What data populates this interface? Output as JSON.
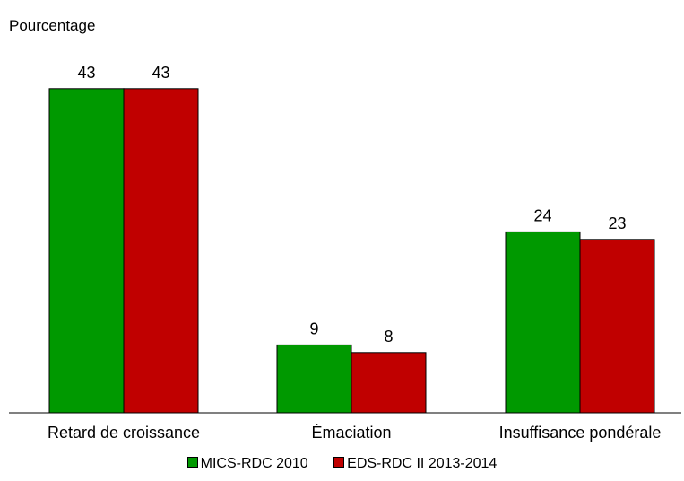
{
  "chart_data": {
    "type": "bar",
    "title": "",
    "ylabel": "Pourcentage",
    "xlabel": "",
    "categories": [
      "Retard de croissance",
      "Émaciation",
      "Insuffisance pondérale"
    ],
    "series": [
      {
        "name": "MICS-RDC 2010",
        "values": [
          43,
          9,
          24
        ],
        "color": "#009900"
      },
      {
        "name": "EDS-RDC II 2013-2014",
        "values": [
          43,
          8,
          23
        ],
        "color": "#C00000"
      }
    ],
    "ylim": [
      0,
      50
    ],
    "grid": false,
    "legend_position": "bottom"
  }
}
